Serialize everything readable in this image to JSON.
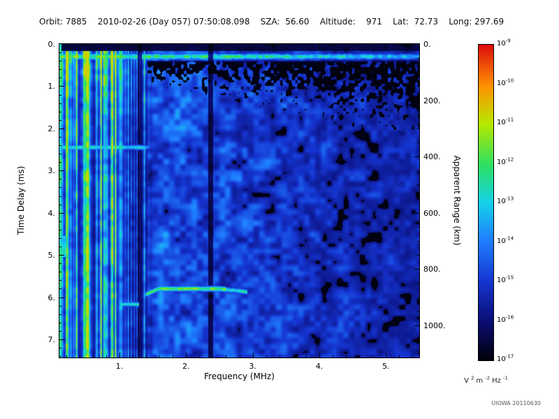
{
  "header": {
    "segments": [
      "Orbit: 7885",
      "2010-02-26 (Day 057) 07:50:08.098",
      "SZA:  56.60",
      "Altitude:    971",
      "Lat:  72.73",
      "Long: 297.69"
    ],
    "separator": "    "
  },
  "credit": "UIOWA 20110630",
  "chart_data": {
    "type": "heatmap",
    "description": "Radar sounder ionogram spectrogram: time delay vs frequency, signal intensity color-coded",
    "x_axis": {
      "label": "Frequency (MHz)",
      "min": 0.1,
      "max": 5.5,
      "major_ticks": [
        1,
        2,
        3,
        4,
        5
      ],
      "tick_labels": [
        "1.",
        "2.",
        "3.",
        "4.",
        "5."
      ],
      "minor_tick_step": 0.2
    },
    "y_axis_left": {
      "label": "Time Delay (ms)",
      "min": 0,
      "max": 7.43,
      "major_ticks": [
        0,
        1,
        2,
        3,
        4,
        5,
        6,
        7
      ],
      "tick_labels": [
        "0.",
        "1.",
        "2.",
        "3.",
        "4.",
        "5.",
        "6.",
        "7."
      ],
      "minor_tick_step": 0.2
    },
    "y_axis_right": {
      "label": "Apparent Range (km)",
      "km_per_ms": 150,
      "major_ticks": [
        0,
        200,
        400,
        600,
        800,
        1000
      ],
      "tick_labels": [
        "0.",
        "200.",
        "400.",
        "600.",
        "800.",
        "1000."
      ],
      "minor_tick_step": 50
    },
    "colorbar": {
      "scale": "log",
      "exponents": [
        -9,
        -10,
        -11,
        -12,
        -13,
        -14,
        -15,
        -16,
        -17
      ],
      "unit_parts": [
        [
          "V",
          "2"
        ],
        [
          "m",
          "-2"
        ],
        [
          "Hz",
          "-1"
        ]
      ]
    },
    "colormap": [
      [
        0.0,
        "#010108"
      ],
      [
        0.12,
        "#0a0c72"
      ],
      [
        0.25,
        "#1535d0"
      ],
      [
        0.38,
        "#1f7fff"
      ],
      [
        0.5,
        "#15d2e8"
      ],
      [
        0.62,
        "#2ee060"
      ],
      [
        0.75,
        "#b8e800"
      ],
      [
        0.87,
        "#ff9000"
      ],
      [
        1.0,
        "#dc0d0d"
      ]
    ],
    "features": {
      "noise_seed": 20110630,
      "background": {
        "base": 0.14,
        "noise_amp": 0.28
      },
      "top_black_band_ms": 0.165,
      "surface_echo_band": {
        "delay_ms": 0.3,
        "sigma_ms": 0.085,
        "amp_left": 0.66,
        "amp_right_falloff": 0.2
      },
      "interference_stripes": {
        "freq_start_mhz": 0.1,
        "freq_fade_mhz": 1.32,
        "freq_end_mhz": 1.55
      },
      "horizontal_line": {
        "delay_ms": 2.45,
        "sigma_ms": 0.07,
        "amp": 0.55,
        "freq_end_mhz": 1.5
      },
      "ionospheric_trace": {
        "freq_start_mhz": 1.32,
        "freq_end_mhz": 2.92,
        "delay_ms": 5.8,
        "sigma_ms": 0.07,
        "amp": 0.66
      },
      "secondary_trace": {
        "freq_start_mhz": 1.02,
        "freq_end_mhz": 1.3,
        "delay_ms": 6.17,
        "sigma_ms": 0.06,
        "amp": 0.52
      },
      "dark_columns_mhz": [
        [
          1.27,
          1.335
        ],
        [
          2.33,
          2.405
        ]
      ],
      "lower_left_patch": {
        "freq_end_mhz": 0.24,
        "delay_start_ms": 4.55,
        "delay_end_ms": 5.05,
        "amp": 0.6
      }
    }
  }
}
